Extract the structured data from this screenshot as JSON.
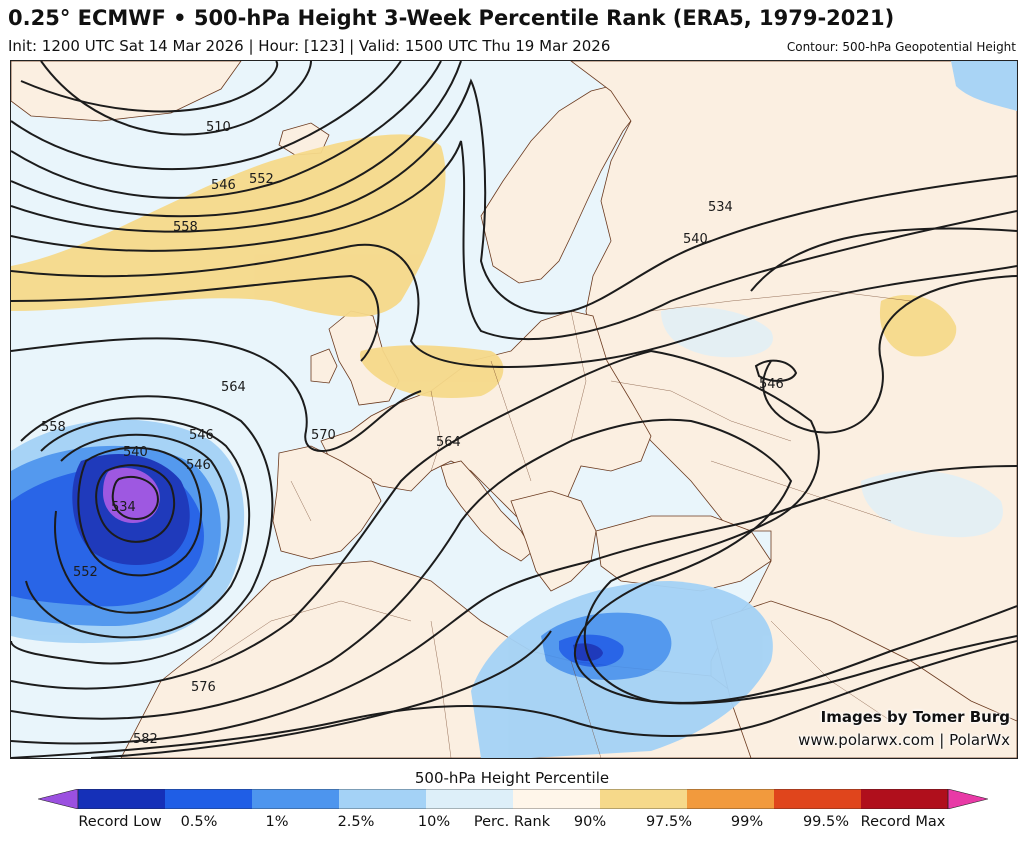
{
  "header": {
    "title": "0.25° ECMWF • 500-hPa Height 3-Week Percentile Rank (ERA5, 1979-2021)",
    "subtitle": "Init: 1200 UTC Sat 14 Mar 2026 | Hour: [123] | Valid: 1500 UTC Thu 19 Mar 2026",
    "contour_note": "Contour: 500-hPa Geopotential Height"
  },
  "map": {
    "region": "Europe, North Atlantic, North Africa, Middle East",
    "contour_labels": [
      "510",
      "546",
      "552",
      "558",
      "564",
      "570",
      "546",
      "540",
      "534",
      "552",
      "546",
      "558",
      "564",
      "576",
      "582",
      "534",
      "540",
      "546"
    ],
    "colors": {
      "ocean": "#e9f5fb",
      "land": "#fbefe1",
      "coast": "#6b3a1f",
      "contour": "#1c1c1c"
    }
  },
  "credits": {
    "line1": "Images by Tomer Burg",
    "line2": "www.polarwx.com | PolarWx"
  },
  "legend": {
    "title": "500-hPa Height Percentile",
    "labels": [
      "Record Low",
      "0.5%",
      "1%",
      "2.5%",
      "10%",
      "Perc. Rank",
      "90%",
      "97.5%",
      "99%",
      "99.5%",
      "Record Max"
    ],
    "colors": [
      "#9b50e0",
      "#1530b8",
      "#1f5ee6",
      "#4d95ee",
      "#a4d2f6",
      "#ddeff9",
      "#fff6ea",
      "#f6d98a",
      "#f29a3d",
      "#e0451c",
      "#b00f1c",
      "#e83aa6"
    ]
  }
}
